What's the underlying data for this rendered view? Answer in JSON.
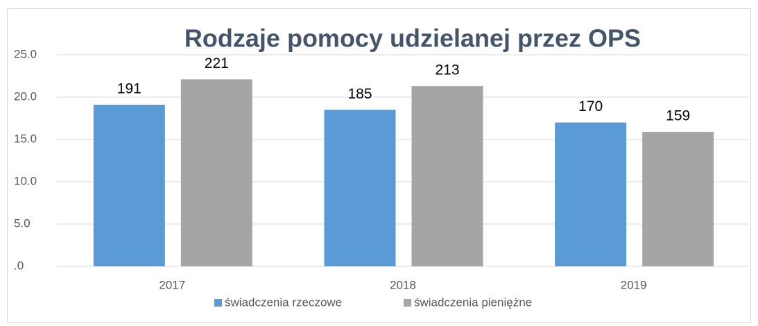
{
  "chart_data": {
    "type": "bar",
    "title": "Rodzaje pomocy udzielanej przez OPS",
    "categories": [
      "2017",
      "2018",
      "2019"
    ],
    "series": [
      {
        "name": "świadczenia rzeczowe",
        "color": "#5b9bd5",
        "values": [
          19.1,
          18.5,
          17.0
        ],
        "value_labels": [
          "191",
          "185",
          "170"
        ]
      },
      {
        "name": "świadczenia pieniężne",
        "color": "#a5a5a5",
        "values": [
          22.1,
          21.3,
          15.9
        ],
        "value_labels": [
          "221",
          "213",
          "159"
        ]
      }
    ],
    "ylim": [
      0,
      25
    ],
    "yticks": [
      {
        "value": 0,
        "label": ".0"
      },
      {
        "value": 5,
        "label": "5.0"
      },
      {
        "value": 10,
        "label": "10.0"
      },
      {
        "value": 15,
        "label": "15.0"
      },
      {
        "value": 20,
        "label": "20.0"
      },
      {
        "value": 25,
        "label": "25.0"
      }
    ],
    "grid": true,
    "legend": "bottom"
  }
}
